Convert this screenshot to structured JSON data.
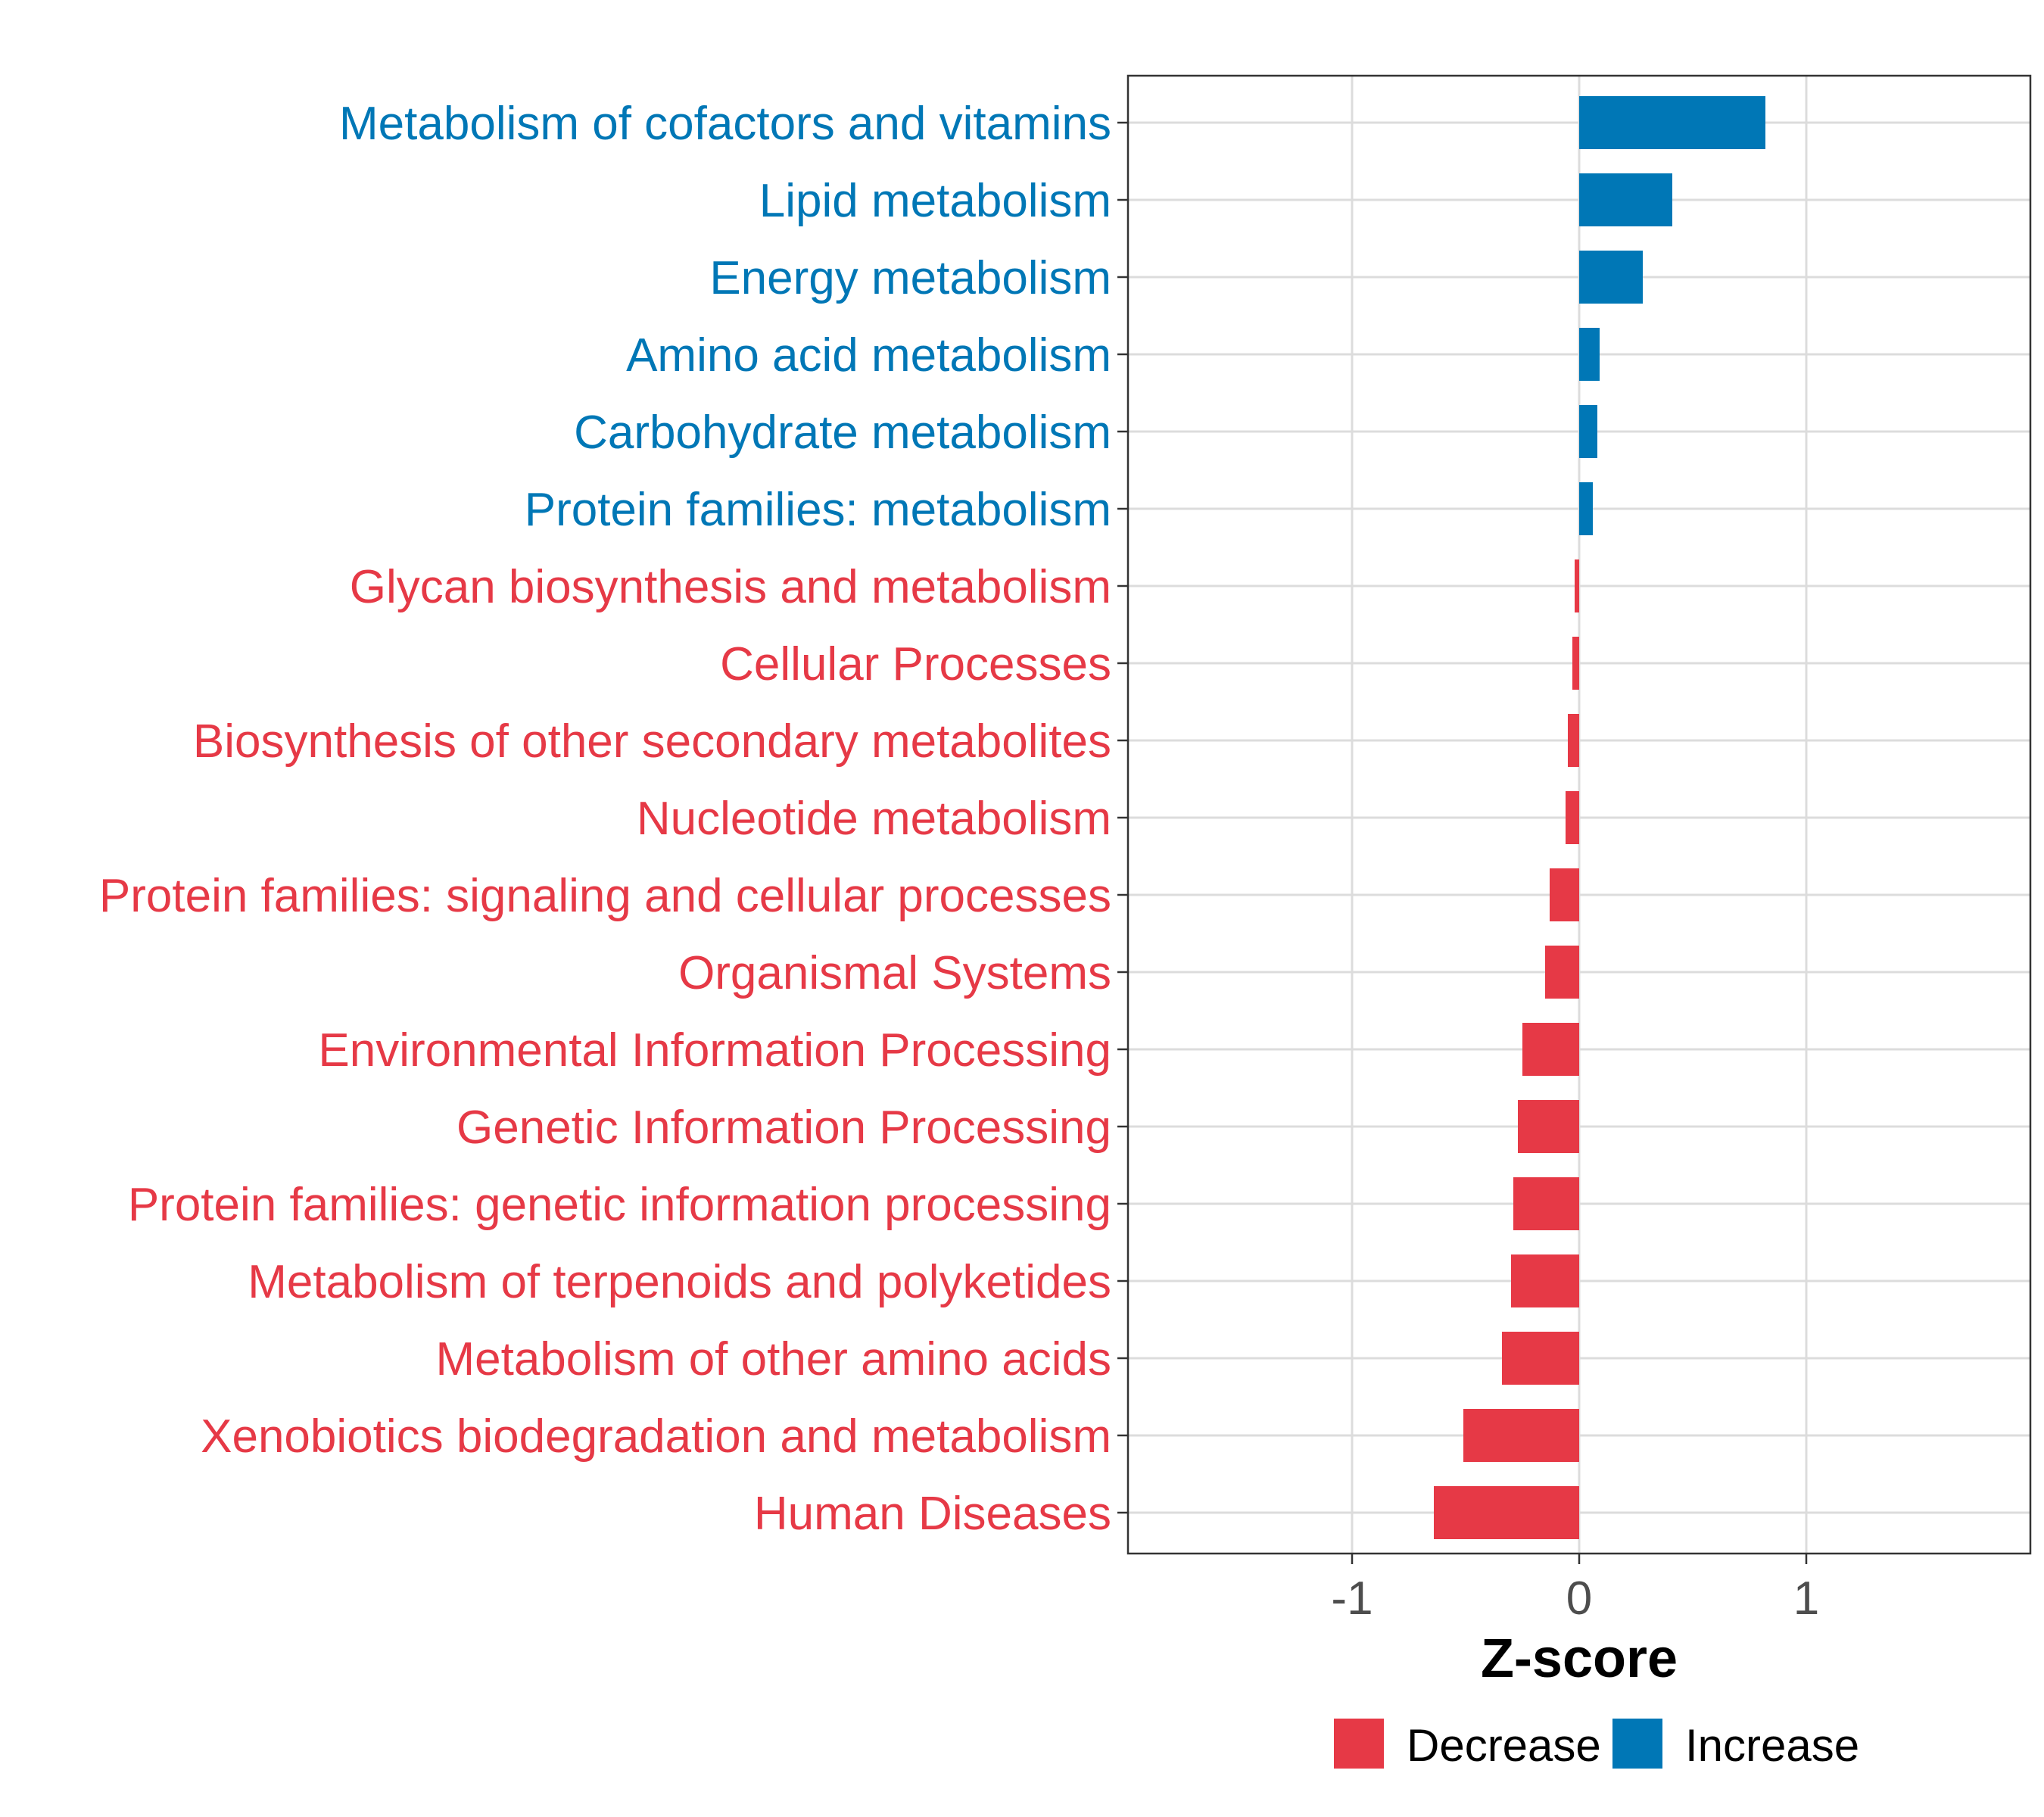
{
  "chart_data": {
    "type": "bar",
    "orientation": "horizontal",
    "xlabel": "Z-score",
    "ylabel": "",
    "xlim": [
      -2,
      2
    ],
    "xticks": [
      -1,
      0,
      1
    ],
    "xtick_labels": [
      "-1",
      "0",
      "1"
    ],
    "grid": true,
    "legend_position": "bottom",
    "colors": {
      "Decrease": "#e63946",
      "Increase": "#0077b6"
    },
    "legend": [
      {
        "label": "Decrease",
        "color": "#e63946"
      },
      {
        "label": "Increase",
        "color": "#0077b6"
      }
    ],
    "categories": [
      "Metabolism of cofactors and vitamins",
      "Lipid metabolism",
      "Energy metabolism",
      "Amino acid metabolism",
      "Carbohydrate metabolism",
      "Protein families: metabolism",
      "Glycan biosynthesis and metabolism",
      "Cellular Processes",
      "Biosynthesis of other secondary metabolites",
      "Nucleotide metabolism",
      "Protein families: signaling and cellular processes",
      "Organismal Systems",
      "Environmental Information Processing",
      "Genetic Information Processing",
      "Protein families: genetic information processing",
      "Metabolism of terpenoids and polyketides",
      "Metabolism of other amino acids",
      "Xenobiotics biodegradation and metabolism",
      "Human Diseases"
    ],
    "values": [
      0.82,
      0.41,
      0.28,
      0.09,
      0.08,
      0.06,
      -0.02,
      -0.03,
      -0.05,
      -0.06,
      -0.13,
      -0.15,
      -0.25,
      -0.27,
      -0.29,
      -0.3,
      -0.34,
      -0.51,
      -0.64
    ],
    "groups": [
      "Increase",
      "Increase",
      "Increase",
      "Increase",
      "Increase",
      "Increase",
      "Decrease",
      "Decrease",
      "Decrease",
      "Decrease",
      "Decrease",
      "Decrease",
      "Decrease",
      "Decrease",
      "Decrease",
      "Decrease",
      "Decrease",
      "Decrease",
      "Decrease"
    ]
  }
}
